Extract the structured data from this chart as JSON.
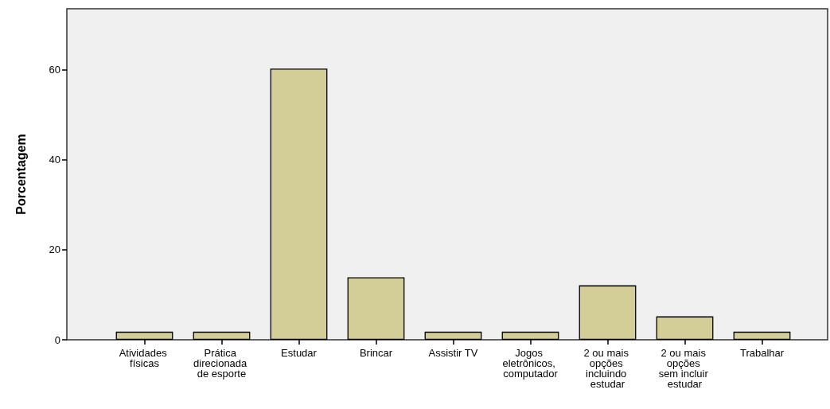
{
  "chart_data": {
    "type": "bar",
    "ylabel": "Porcentagem",
    "categories": [
      "Atividades físicas",
      "Prática direcionada de esporte",
      "Estudar",
      "Brincar",
      "Assistir TV",
      "Jogos eletrônicos, computador",
      "2 ou mais opções incluindo estudar",
      "2 ou mais opções sem incluir estudar",
      "Trabalhar"
    ],
    "values": [
      1.8,
      1.8,
      60.3,
      13.9,
      1.8,
      1.8,
      12.1,
      5.2,
      1.8
    ],
    "color": "#d3ce97",
    "ylim": [
      0,
      73.6
    ],
    "yticks": [
      0,
      20,
      40,
      60
    ],
    "grid": false
  }
}
